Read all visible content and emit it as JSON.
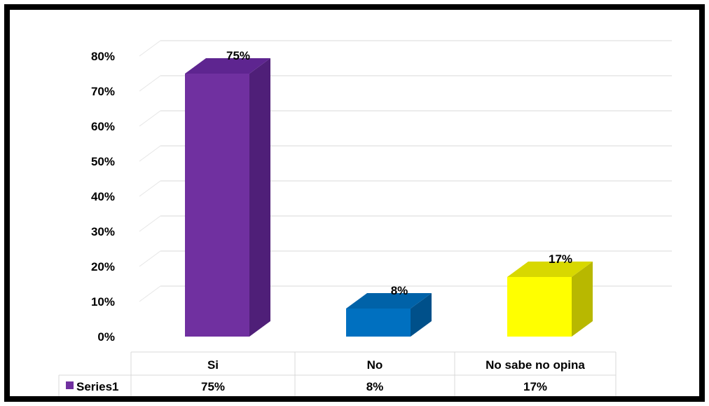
{
  "chart_data": {
    "type": "bar",
    "categories": [
      "Si",
      "No",
      "No sabe no opina"
    ],
    "series": [
      {
        "name": "Series1",
        "values": [
          75,
          8,
          17
        ],
        "value_labels": [
          "75%",
          "8%",
          "17%"
        ],
        "colors": [
          "#7030a0",
          "#0070c0",
          "#ffff00"
        ],
        "side_colors": [
          "#4f1f78",
          "#00508a",
          "#b8b800"
        ],
        "top_colors": [
          "#5e2590",
          "#0062a8",
          "#d8d800"
        ]
      }
    ],
    "y_ticks": [
      0,
      10,
      20,
      30,
      40,
      50,
      60,
      70,
      80
    ],
    "y_tick_labels": [
      "0%",
      "10%",
      "20%",
      "30%",
      "40%",
      "50%",
      "60%",
      "70%",
      "80%"
    ],
    "ylim": [
      0,
      80
    ],
    "grid": true,
    "three_d": true,
    "data_table": true,
    "title": "",
    "xlabel": "",
    "ylabel": ""
  }
}
